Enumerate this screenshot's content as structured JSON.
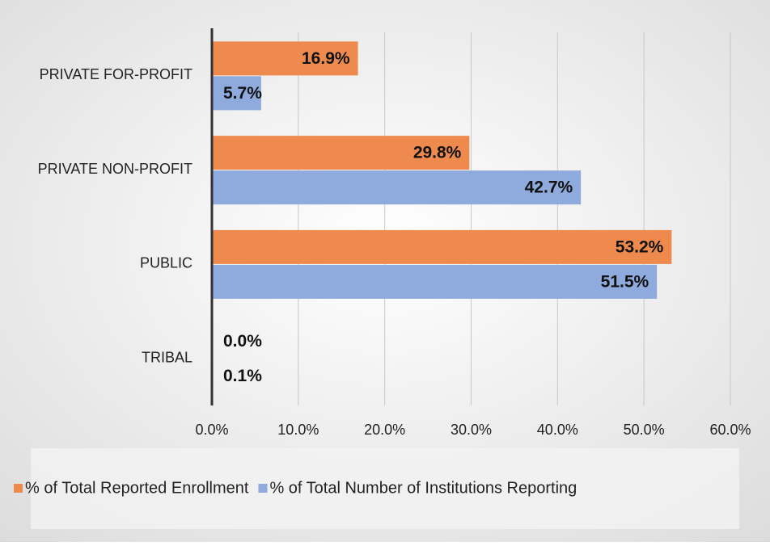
{
  "chart_data": {
    "type": "bar",
    "orientation": "horizontal",
    "categories": [
      "PRIVATE FOR-PROFIT",
      "PRIVATE NON-PROFIT",
      "PUBLIC",
      "TRIBAL"
    ],
    "series": [
      {
        "name": "% of Total Reported Enrollment",
        "color": "#ee8a4e",
        "values": [
          16.9,
          29.8,
          53.2,
          0.0
        ],
        "value_labels": [
          "16.9%",
          "29.8%",
          "53.2%",
          "0.0%"
        ]
      },
      {
        "name": "% of Total Number of Institutions Reporting",
        "color": "#8faadc",
        "values": [
          5.7,
          42.7,
          51.5,
          0.1
        ],
        "value_labels": [
          "5.7%",
          "42.7%",
          "51.5%",
          "0.1%"
        ]
      }
    ],
    "xlim": [
      0,
      60
    ],
    "xticks": [
      {
        "value": 0,
        "label": "0.0%"
      },
      {
        "value": 10,
        "label": "10.0%"
      },
      {
        "value": 20,
        "label": "20.0%"
      },
      {
        "value": 30,
        "label": "30.0%"
      },
      {
        "value": 40,
        "label": "40.0%"
      },
      {
        "value": 50,
        "label": "50.0%"
      },
      {
        "value": 60,
        "label": "60.0%"
      }
    ],
    "grid": true,
    "legend": "bottom"
  }
}
